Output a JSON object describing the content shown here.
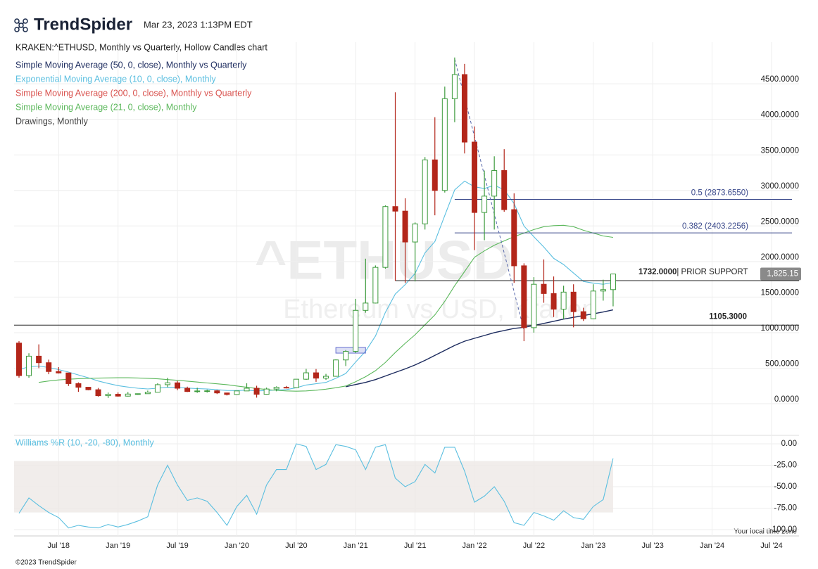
{
  "header": {
    "brand": "TrendSpider",
    "timestamp": "Mar 23, 2023 1:13PM EDT"
  },
  "footer": {
    "copyright": "©2023 TrendSpider",
    "timezone": "Your local time zone"
  },
  "chart_data": {
    "type": "candlestick",
    "title": "KRAKEN:^ETHUSD, Monthly vs Quarterly, Hollow Candles chart",
    "watermark": [
      "^ETHUSD",
      "Ethereum vs USD, Kraken"
    ],
    "x": [
      "2018-03",
      "2018-04",
      "2018-05",
      "2018-06",
      "2018-07",
      "2018-08",
      "2018-09",
      "2018-10",
      "2018-11",
      "2018-12",
      "2019-01",
      "2019-02",
      "2019-03",
      "2019-04",
      "2019-05",
      "2019-06",
      "2019-07",
      "2019-08",
      "2019-09",
      "2019-10",
      "2019-11",
      "2019-12",
      "2020-01",
      "2020-02",
      "2020-03",
      "2020-04",
      "2020-05",
      "2020-06",
      "2020-07",
      "2020-08",
      "2020-09",
      "2020-10",
      "2020-11",
      "2020-12",
      "2021-01",
      "2021-02",
      "2021-03",
      "2021-04",
      "2021-05",
      "2021-06",
      "2021-07",
      "2021-08",
      "2021-09",
      "2021-10",
      "2021-11",
      "2021-12",
      "2022-01",
      "2022-02",
      "2022-03",
      "2022-04",
      "2022-05",
      "2022-06",
      "2022-07",
      "2022-08",
      "2022-09",
      "2022-10",
      "2022-11",
      "2022-12",
      "2023-01",
      "2023-02",
      "2023-03"
    ],
    "open": [
      853,
      396,
      669,
      577,
      453,
      433,
      283,
      232,
      197,
      113,
      133,
      107,
      136,
      141,
      163,
      268,
      294,
      218,
      172,
      180,
      182,
      152,
      130,
      180,
      218,
      133,
      207,
      231,
      226,
      345,
      435,
      360,
      386,
      616,
      737,
      1313,
      1416,
      1918,
      2773,
      2709,
      2275,
      2530,
      3430,
      3000,
      4290,
      4630,
      3680,
      2690,
      2920,
      3280,
      2730,
      1940,
      1070,
      1680,
      1550,
      1330,
      1570,
      1295,
      1195,
      1585,
      1605
    ],
    "high": [
      880,
      710,
      835,
      620,
      515,
      435,
      300,
      235,
      222,
      158,
      160,
      165,
      144,
      185,
      288,
      365,
      320,
      240,
      225,
      199,
      194,
      154,
      183,
      288,
      253,
      227,
      245,
      250,
      347,
      490,
      488,
      420,
      623,
      755,
      1475,
      2040,
      1945,
      2790,
      4380,
      2890,
      2550,
      3470,
      4030,
      4460,
      4870,
      4780,
      3900,
      3280,
      3480,
      3580,
      2960,
      1975,
      1780,
      2030,
      1790,
      1660,
      1680,
      1350,
      1680,
      1745,
      1830
    ],
    "low": [
      367,
      366,
      500,
      415,
      425,
      250,
      167,
      190,
      100,
      81,
      100,
      102,
      126,
      140,
      160,
      232,
      190,
      165,
      153,
      157,
      136,
      116,
      127,
      179,
      86,
      128,
      175,
      215,
      222,
      336,
      308,
      335,
      380,
      530,
      714,
      1280,
      1410,
      1900,
      1730,
      1700,
      1720,
      2450,
      2650,
      2970,
      3960,
      3520,
      2160,
      2300,
      2450,
      2700,
      1700,
      880,
      1000,
      1420,
      1220,
      1190,
      1075,
      1165,
      1190,
      1450,
      1370
    ],
    "close": [
      396,
      669,
      577,
      453,
      433,
      283,
      232,
      197,
      113,
      133,
      107,
      136,
      141,
      163,
      268,
      294,
      218,
      172,
      180,
      182,
      152,
      130,
      180,
      218,
      133,
      207,
      231,
      226,
      345,
      435,
      360,
      386,
      616,
      737,
      1313,
      1416,
      1918,
      2773,
      2709,
      2275,
      2530,
      3430,
      3000,
      4290,
      4630,
      3680,
      2690,
      2920,
      3280,
      2730,
      1940,
      1070,
      1680,
      1550,
      1330,
      1570,
      1295,
      1195,
      1585,
      1605,
      1825.15
    ],
    "up_color": "#3d9b3d",
    "down_color": "#b3261a",
    "xlim": [
      "2018-03",
      "2024-07"
    ],
    "xticks": [
      {
        "value": "2018-07",
        "label": "Jul '18"
      },
      {
        "value": "2019-01",
        "label": "Jan '19"
      },
      {
        "value": "2019-07",
        "label": "Jul '19"
      },
      {
        "value": "2020-01",
        "label": "Jan '20"
      },
      {
        "value": "2020-07",
        "label": "Jul '20"
      },
      {
        "value": "2021-01",
        "label": "Jan '21"
      },
      {
        "value": "2021-07",
        "label": "Jul '21"
      },
      {
        "value": "2022-01",
        "label": "Jan '22"
      },
      {
        "value": "2022-07",
        "label": "Jul '22"
      },
      {
        "value": "2023-01",
        "label": "Jan '23"
      },
      {
        "value": "2023-07",
        "label": "Jul '23"
      },
      {
        "value": "2024-01",
        "label": "Jan '24"
      },
      {
        "value": "2024-07",
        "label": "Jul '24"
      }
    ],
    "ylim": [
      -435,
      5085
    ],
    "yticks": [
      {
        "value": 0,
        "label": "0.0000"
      },
      {
        "value": 500,
        "label": "500.0000"
      },
      {
        "value": 1000,
        "label": "1000.0000"
      },
      {
        "value": 1500,
        "label": "1500.0000"
      },
      {
        "value": 2000,
        "label": "2000.0000"
      },
      {
        "value": 2500,
        "label": "2500.0000"
      },
      {
        "value": 3000,
        "label": "3000.0000"
      },
      {
        "value": 3500,
        "label": "3500.0000"
      },
      {
        "value": 4000,
        "label": "4000.0000"
      },
      {
        "value": 4500,
        "label": "4500.0000"
      }
    ],
    "grid": true,
    "series": [
      {
        "name": "Simple Moving Average (50, 0, close), Monthly vs Quarterly",
        "color": "#1c2b5e",
        "values": [
          null,
          null,
          null,
          null,
          null,
          null,
          null,
          null,
          null,
          null,
          null,
          null,
          null,
          null,
          null,
          null,
          null,
          null,
          null,
          null,
          null,
          null,
          null,
          null,
          null,
          null,
          null,
          null,
          null,
          null,
          null,
          null,
          null,
          240,
          270,
          300,
          340,
          390,
          440,
          490,
          545,
          610,
          680,
          750,
          820,
          880,
          920,
          960,
          1000,
          1030,
          1060,
          1075,
          1100,
          1130,
          1160,
          1190,
          1215,
          1240,
          1265,
          1290,
          1320
        ]
      },
      {
        "name": "Exponential Moving Average (10, 0, close), Monthly",
        "color": "#5bbfe0",
        "values": [
          480,
          520,
          530,
          510,
          480,
          445,
          405,
          365,
          320,
          285,
          255,
          235,
          218,
          208,
          218,
          232,
          230,
          220,
          213,
          207,
          197,
          186,
          185,
          191,
          180,
          185,
          193,
          199,
          225,
          263,
          281,
          300,
          357,
          426,
          587,
          738,
          953,
          1284,
          1543,
          1676,
          1832,
          2122,
          2282,
          2647,
          3008,
          3131,
          3051,
          3027,
          3073,
          3010,
          2816,
          2498,
          2349,
          2203,
          2044,
          1958,
          1838,
          1720,
          1696,
          1680,
          1707
        ]
      },
      {
        "name": "Simple Moving Average (200, 0, close), Monthly vs Quarterly",
        "color": "#d9534f"
      },
      {
        "name": "Simple Moving Average (21, 0, close), Monthly",
        "color": "#5cb85c",
        "values": [
          null,
          null,
          300,
          320,
          335,
          345,
          352,
          357,
          360,
          363,
          365,
          365,
          362,
          357,
          350,
          340,
          330,
          318,
          305,
          292,
          280,
          268,
          250,
          232,
          215,
          200,
          188,
          180,
          176,
          180,
          190,
          205,
          225,
          250,
          310,
          380,
          465,
          580,
          720,
          850,
          970,
          1110,
          1250,
          1440,
          1660,
          1860,
          2060,
          2150,
          2230,
          2290,
          2350,
          2400,
          2450,
          2490,
          2505,
          2510,
          2490,
          2440,
          2400,
          2360,
          2340
        ]
      },
      {
        "name": "Drawings, Monthly",
        "color": "#444444"
      }
    ],
    "levels": [
      {
        "value": 2873.655,
        "label": "0.5 (2873.6550)",
        "from": "2021-11",
        "color": "#3b4a8c"
      },
      {
        "value": 2403.2256,
        "label": "0.382 (2403.2256)",
        "from": "2021-11",
        "color": "#3b4a8c"
      },
      {
        "value": 1732,
        "label": "1732.0000",
        "text": "| PRIOR SUPPORT",
        "from": "2021-05",
        "color": "#222222"
      },
      {
        "value": 1105.3,
        "label": "1105.3000",
        "color": "#222222"
      }
    ],
    "trendline": {
      "from": "2021-11",
      "to": "2022-06",
      "values": [
        4850,
        1030
      ],
      "color": "#5566aa"
    },
    "box": {
      "from": "2020-11",
      "to": "2021-02",
      "values": [
        712,
        791
      ],
      "color": "#6670d0"
    },
    "last_price": {
      "value": 1825.15,
      "label": "1,825.15"
    },
    "williams": {
      "title": "Williams %R (10, -20, -80), Monthly",
      "color": "#5bbfe0",
      "ylim": [
        -100,
        0
      ],
      "yticks": [
        {
          "value": 0,
          "label": "0.00"
        },
        {
          "value": -25,
          "label": "-25.00"
        },
        {
          "value": -50,
          "label": "-50.00"
        },
        {
          "value": -75,
          "label": "-75.00"
        },
        {
          "value": -100,
          "label": "-100.00"
        }
      ],
      "band": [
        -80,
        -20
      ],
      "values": [
        -81,
        -63,
        -72,
        -80,
        -86,
        -98,
        -95,
        -97,
        -98,
        -94,
        -97,
        -94,
        -90,
        -85,
        -48,
        -25,
        -48,
        -66,
        -63,
        -67,
        -80,
        -95,
        -73,
        -60,
        -82,
        -48,
        -30,
        -30,
        0,
        -3,
        -30,
        -24,
        -1,
        -3,
        -7,
        -30,
        -4,
        -1,
        -40,
        -50,
        -44,
        -24,
        -34,
        -4,
        -4,
        -32,
        -68,
        -61,
        -50,
        -67,
        -92,
        -95,
        -80,
        -84,
        -89,
        -78,
        -86,
        -88,
        -73,
        -65,
        -17
      ]
    }
  }
}
